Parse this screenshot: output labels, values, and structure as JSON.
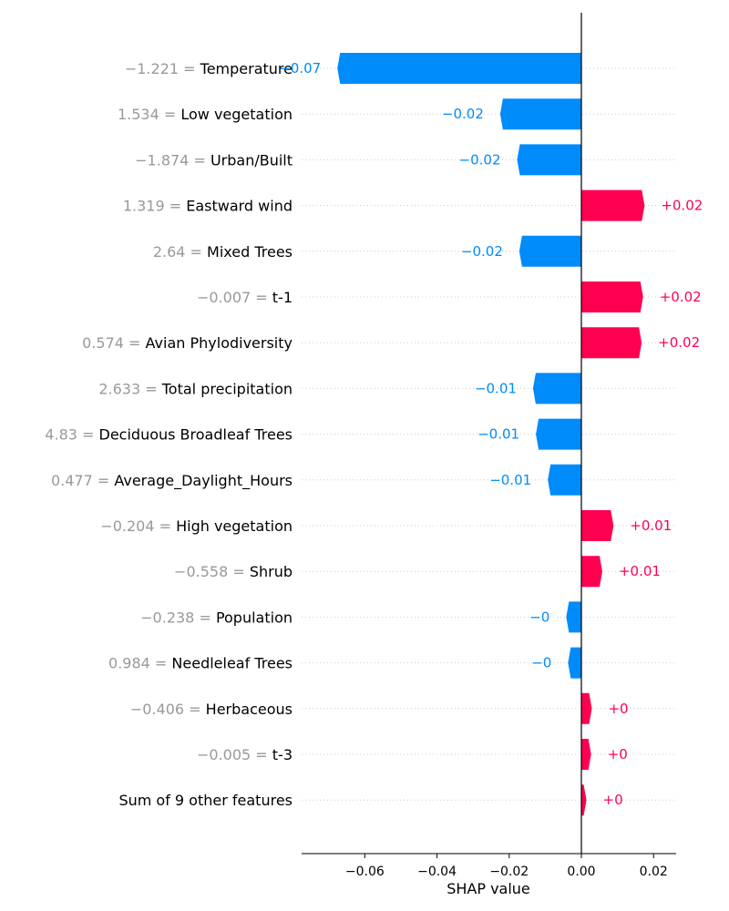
{
  "chart_data": {
    "type": "bar",
    "orientation": "horizontal",
    "subtype": "shap-waterfall-bar",
    "xlabel": "SHAP value",
    "xlim": [
      -0.0775,
      0.0255
    ],
    "xticks": [
      {
        "value": -0.06,
        "label": "−0.06"
      },
      {
        "value": -0.04,
        "label": "−0.04"
      },
      {
        "value": -0.02,
        "label": "−0.02"
      },
      {
        "value": 0.0,
        "label": "0.00"
      },
      {
        "value": 0.02,
        "label": "0.02"
      }
    ],
    "grid": "dotted horizontal",
    "colors": {
      "negative": "#008bfb",
      "positive": "#ff0051",
      "feature_value": "#999999",
      "feature_name": "#000000",
      "axis": "#000000",
      "grid": "#cccccc"
    },
    "rows": [
      {
        "feature_value": "−1.221",
        "feature": "Temperature",
        "value": -0.0676,
        "label": "−0.07"
      },
      {
        "feature_value": "1.534",
        "feature": "Low vegetation",
        "value": -0.0225,
        "label": "−0.02"
      },
      {
        "feature_value": "−1.874",
        "feature": "Urban/Built",
        "value": -0.0178,
        "label": "−0.02"
      },
      {
        "feature_value": "1.319",
        "feature": "Eastward wind",
        "value": 0.0175,
        "label": "+0.02"
      },
      {
        "feature_value": "2.64",
        "feature": "Mixed Trees",
        "value": -0.0172,
        "label": "−0.02"
      },
      {
        "feature_value": "−0.007",
        "feature": "t-1",
        "value": 0.0171,
        "label": "+0.02"
      },
      {
        "feature_value": "0.574",
        "feature": "Avian Phylodiversity",
        "value": 0.0167,
        "label": "+0.02"
      },
      {
        "feature_value": "2.633",
        "feature": "Total precipitation",
        "value": -0.0134,
        "label": "−0.01"
      },
      {
        "feature_value": "4.83",
        "feature": "Deciduous Broadleaf Trees",
        "value": -0.0126,
        "label": "−0.01"
      },
      {
        "feature_value": "0.477",
        "feature": "Average_Daylight_Hours",
        "value": -0.0093,
        "label": "−0.01"
      },
      {
        "feature_value": "−0.204",
        "feature": "High vegetation",
        "value": 0.0089,
        "label": "+0.01"
      },
      {
        "feature_value": "−0.558",
        "feature": "Shrub",
        "value": 0.0058,
        "label": "+0.01"
      },
      {
        "feature_value": "−0.238",
        "feature": "Population",
        "value": -0.0042,
        "label": "−0"
      },
      {
        "feature_value": "0.984",
        "feature": "Needleleaf Trees",
        "value": -0.0037,
        "label": "−0"
      },
      {
        "feature_value": "−0.406",
        "feature": "Herbaceous",
        "value": 0.0029,
        "label": "+0"
      },
      {
        "feature_value": "−0.005",
        "feature": "t-3",
        "value": 0.0027,
        "label": "+0"
      },
      {
        "feature_value": "",
        "feature": "Sum of 9 other features",
        "value": 0.0014,
        "label": "+0"
      }
    ]
  }
}
